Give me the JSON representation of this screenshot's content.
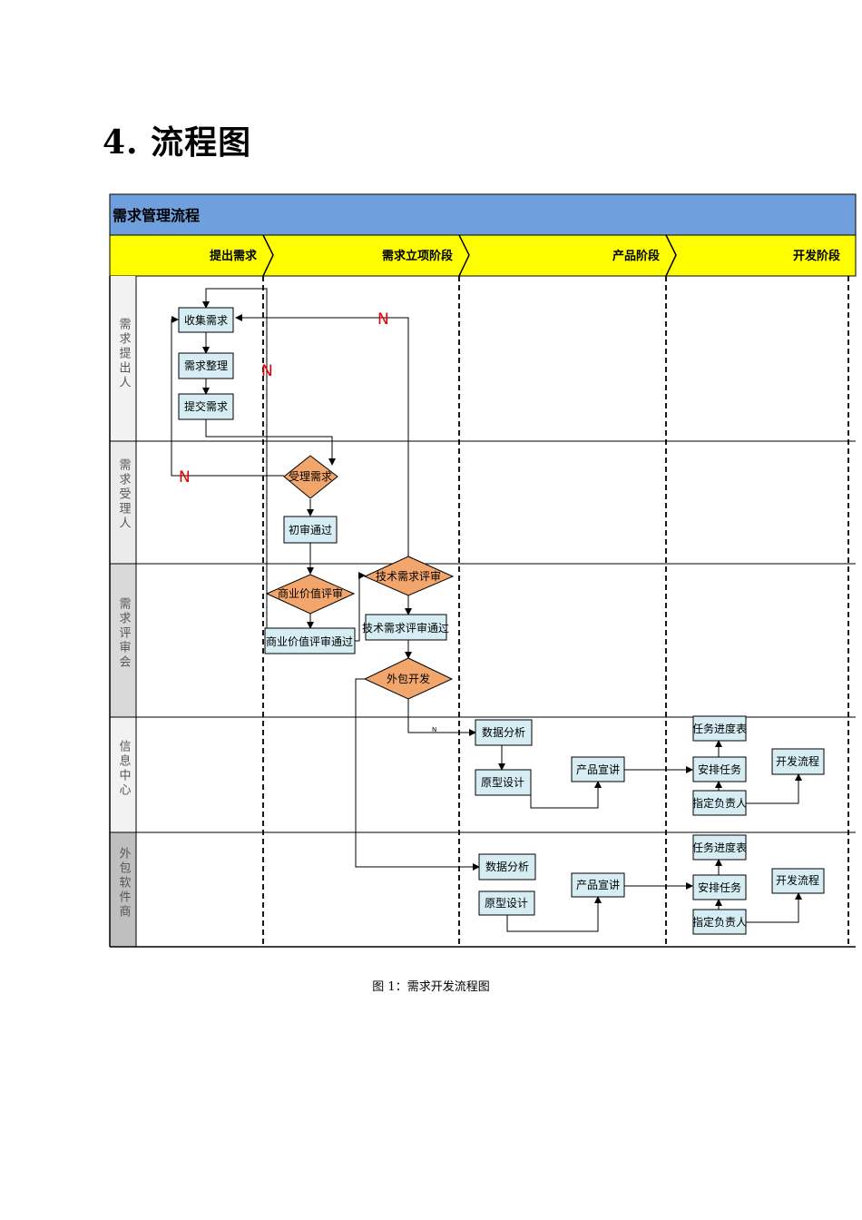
{
  "heading": "4. 流程图",
  "caption": "图 1：需求开发流程图",
  "diagram": {
    "title": "需求管理流程",
    "phases": [
      "提出需求",
      "需求立项阶段",
      "产品阶段",
      "开发阶段"
    ],
    "lanes": [
      "需求提出人",
      "需求受理人",
      "需求评审会",
      "信息中心",
      "外包软件商"
    ],
    "nodes": {
      "collect": "收集需求",
      "organize": "需求整理",
      "submit": "提交需求",
      "accept": "受理需求",
      "first_review_pass": "初审通过",
      "biz_review": "商业价值评审",
      "biz_review_pass": "商业价值评审通过",
      "tech_review": "技术需求评审",
      "tech_review_pass": "技术需求评审通过",
      "outsource": "外包开发",
      "ic_data_analysis": "数据分析",
      "ic_prototype": "原型设计",
      "ic_product_talk": "产品宣讲",
      "ic_progress": "任务进度表",
      "ic_schedule": "安排任务",
      "ic_owner": "指定负责人",
      "ic_dev": "开发流程",
      "os_data_analysis": "数据分析",
      "os_prototype": "原型设计",
      "os_product_talk": "产品宣讲",
      "os_progress": "任务进度表",
      "os_schedule": "安排任务",
      "os_owner": "指定负责人",
      "os_dev": "开发流程"
    },
    "edge_labels": {
      "no_1": "N",
      "no_2": "N",
      "no_3": "N",
      "no_4": "N"
    },
    "colors": {
      "title_bar": "#6f9fdc",
      "phase_bar": "#ffff00",
      "lane_label_light": "#f2f2f2",
      "lane_label_dark": "#bfbfbf",
      "process_fill": "#d6eef3",
      "decision_fill": "#f2a66c",
      "no_label": "#e00000"
    }
  }
}
